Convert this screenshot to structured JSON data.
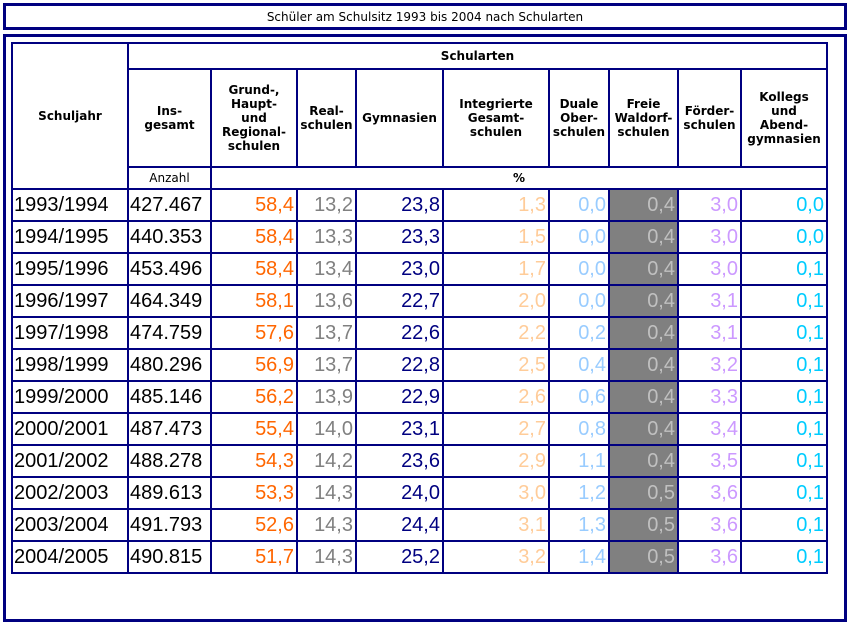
{
  "title": "Schüler am Schulsitz 1993 bis 2004 nach Schularten",
  "header": {
    "schuljahr": "Schuljahr",
    "schularten": "Schularten",
    "columns": [
      "Ins-\ngesamt",
      "Grund-,\nHaupt-\nund\nRegional-\nschulen",
      "Real-\nschulen",
      "Gymnasien",
      "Integrierte\nGesamt-\nschulen",
      "Duale\nOber-\nschulen",
      "Freie\nWaldorf-\nschulen",
      "Förder-\nschulen",
      "Kollegs\nund\nAbend-\ngymnasien"
    ],
    "unit_count": "Anzahl",
    "unit_percent": "%"
  },
  "colors": {
    "border": "#000080",
    "year": "#000000",
    "total": "#000000",
    "grund": "#ff6600",
    "real": "#808080",
    "gym": "#000080",
    "gesamt": "#ffcc99",
    "duale": "#99ccff",
    "waldorf": "#c0c0c0",
    "waldorf_bg": "#808080",
    "foerder": "#cc99ff",
    "kollegs": "#00ccff"
  },
  "rows": [
    {
      "year": "1993/1994",
      "total": "427.467",
      "grund": "58,4",
      "real": "13,2",
      "gym": "23,8",
      "gesamt": "1,3",
      "duale": "0,0",
      "waldorf": "0,4",
      "foerder": "3,0",
      "kollegs": "0,0"
    },
    {
      "year": "1994/1995",
      "total": "440.353",
      "grund": "58,4",
      "real": "13,3",
      "gym": "23,3",
      "gesamt": "1,5",
      "duale": "0,0",
      "waldorf": "0,4",
      "foerder": "3,0",
      "kollegs": "0,0"
    },
    {
      "year": "1995/1996",
      "total": "453.496",
      "grund": "58,4",
      "real": "13,4",
      "gym": "23,0",
      "gesamt": "1,7",
      "duale": "0,0",
      "waldorf": "0,4",
      "foerder": "3,0",
      "kollegs": "0,1"
    },
    {
      "year": "1996/1997",
      "total": "464.349",
      "grund": "58,1",
      "real": "13,6",
      "gym": "22,7",
      "gesamt": "2,0",
      "duale": "0,0",
      "waldorf": "0,4",
      "foerder": "3,1",
      "kollegs": "0,1"
    },
    {
      "year": "1997/1998",
      "total": "474.759",
      "grund": "57,6",
      "real": "13,7",
      "gym": "22,6",
      "gesamt": "2,2",
      "duale": "0,2",
      "waldorf": "0,4",
      "foerder": "3,1",
      "kollegs": "0,1"
    },
    {
      "year": "1998/1999",
      "total": "480.296",
      "grund": "56,9",
      "real": "13,7",
      "gym": "22,8",
      "gesamt": "2,5",
      "duale": "0,4",
      "waldorf": "0,4",
      "foerder": "3,2",
      "kollegs": "0,1"
    },
    {
      "year": "1999/2000",
      "total": "485.146",
      "grund": "56,2",
      "real": "13,9",
      "gym": "22,9",
      "gesamt": "2,6",
      "duale": "0,6",
      "waldorf": "0,4",
      "foerder": "3,3",
      "kollegs": "0,1"
    },
    {
      "year": "2000/2001",
      "total": "487.473",
      "grund": "55,4",
      "real": "14,0",
      "gym": "23,1",
      "gesamt": "2,7",
      "duale": "0,8",
      "waldorf": "0,4",
      "foerder": "3,4",
      "kollegs": "0,1"
    },
    {
      "year": "2001/2002",
      "total": "488.278",
      "grund": "54,3",
      "real": "14,2",
      "gym": "23,6",
      "gesamt": "2,9",
      "duale": "1,1",
      "waldorf": "0,4",
      "foerder": "3,5",
      "kollegs": "0,1"
    },
    {
      "year": "2002/2003",
      "total": "489.613",
      "grund": "53,3",
      "real": "14,3",
      "gym": "24,0",
      "gesamt": "3,0",
      "duale": "1,2",
      "waldorf": "0,5",
      "foerder": "3,6",
      "kollegs": "0,1"
    },
    {
      "year": "2003/2004",
      "total": "491.793",
      "grund": "52,6",
      "real": "14,3",
      "gym": "24,4",
      "gesamt": "3,1",
      "duale": "1,3",
      "waldorf": "0,5",
      "foerder": "3,6",
      "kollegs": "0,1"
    },
    {
      "year": "2004/2005",
      "total": "490.815",
      "grund": "51,7",
      "real": "14,3",
      "gym": "25,2",
      "gesamt": "3,2",
      "duale": "1,4",
      "waldorf": "0,5",
      "foerder": "3,6",
      "kollegs": "0,1"
    }
  ]
}
